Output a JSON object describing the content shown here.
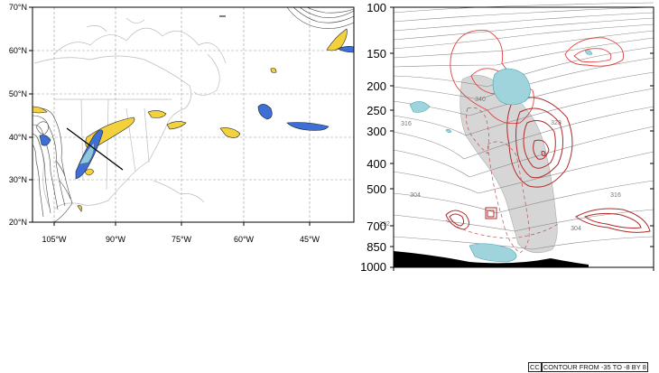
{
  "map_panel": {
    "lat_labels": [
      "70°N",
      "60°N",
      "50°N",
      "40°N",
      "30°N",
      "20°N"
    ],
    "lon_labels": [
      "105°W",
      "90°W",
      "75°W",
      "60°W",
      "45°W"
    ]
  },
  "cross_section_panel": {
    "pressure_labels": [
      "100",
      "150",
      "200",
      "250",
      "300",
      "400",
      "500",
      "700",
      "850",
      "1000"
    ],
    "theta_labels": [
      "340",
      "316",
      "304",
      "292",
      "328",
      "316",
      "304"
    ]
  },
  "footer": {
    "box_text": "CC",
    "contour_text": "CONTOUR FROM -35 TO -8 BY 8"
  },
  "colors": {
    "positive_shading": "#f2d13c",
    "negative_shading": "#3d6fd6",
    "light_blue_shading": "#9fd4dc",
    "red_contour": "#e04040",
    "dark_red_contour": "#b02a2a",
    "gray_shading": "#d6d6d6",
    "terrain": "#000000"
  }
}
